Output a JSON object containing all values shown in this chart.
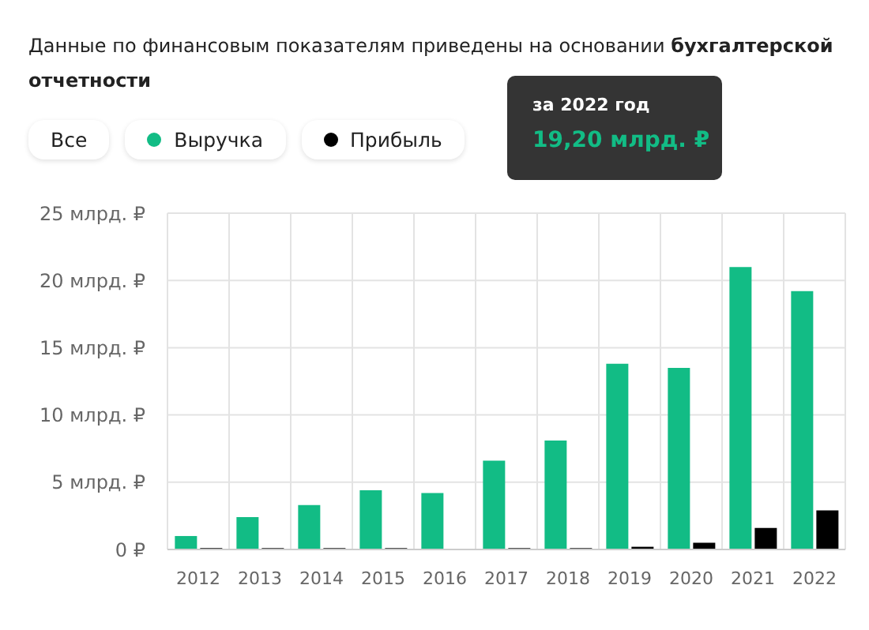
{
  "chart_data": {
    "type": "bar",
    "title": "Данные по финансовым показателям приведены на основании бухгалтерской отчетности",
    "categories": [
      "2012",
      "2013",
      "2014",
      "2015",
      "2016",
      "2017",
      "2018",
      "2019",
      "2020",
      "2021",
      "2022"
    ],
    "series": [
      {
        "name": "Выручка",
        "color": "#12bc85",
        "values": [
          1.0,
          2.4,
          3.3,
          4.4,
          4.2,
          6.6,
          8.1,
          13.8,
          13.5,
          21.0,
          19.2
        ]
      },
      {
        "name": "Прибыль",
        "color": "#000000",
        "values": [
          0.1,
          0.1,
          0.1,
          0.1,
          0,
          0.1,
          0.1,
          0.2,
          0.5,
          1.6,
          2.9
        ]
      }
    ],
    "ylim": [
      0,
      25
    ],
    "yticks": [
      {
        "value": 0,
        "label": "0 ₽"
      },
      {
        "value": 5,
        "label": "5 млрд. ₽"
      },
      {
        "value": 10,
        "label": "10 млрд. ₽"
      },
      {
        "value": 15,
        "label": "15 млрд. ₽"
      },
      {
        "value": 20,
        "label": "20 млрд. ₽"
      },
      {
        "value": 25,
        "label": "25 млрд. ₽"
      }
    ],
    "grid": true,
    "legend": "top left",
    "annotations": [
      "Все",
      "за 2022 год",
      "19,20 млрд. ₽"
    ]
  }
}
